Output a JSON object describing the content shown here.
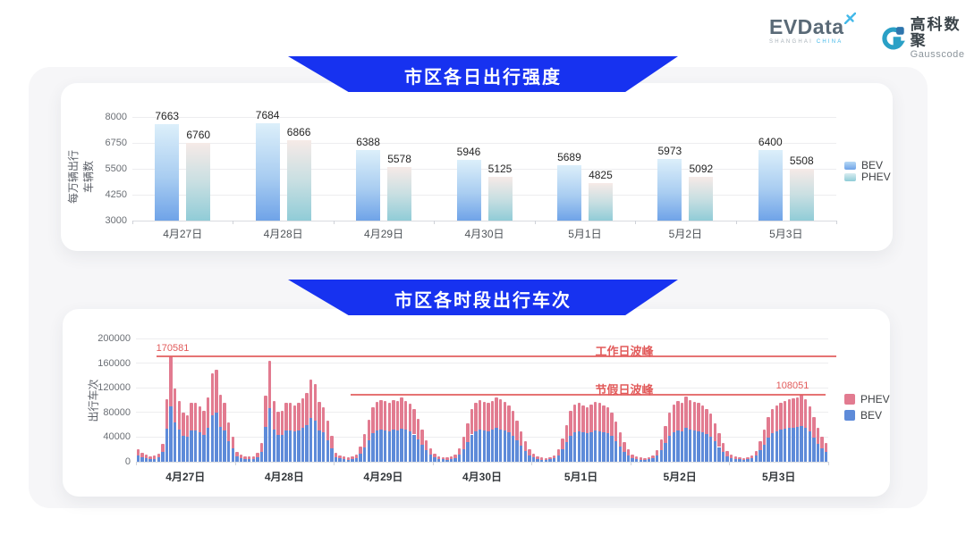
{
  "header": {
    "evdata": {
      "name": "EVData",
      "tagline_gray": "SHANGHAI",
      "tagline_blue": "CHINA"
    },
    "gausscode": {
      "cn": "高科数聚",
      "en": "Gausscode"
    }
  },
  "colors": {
    "banner_blue": "#1732f0",
    "bev_blue": "#5e8bd9",
    "phev_pink": "#e27b90",
    "annotation_red": "#e25b5b",
    "bev_gradient_top": "#dceffa",
    "bev_gradient_bottom": "#6fa3e8",
    "phev_gradient_top": "#f6eae7",
    "phev_gradient_bottom": "#90ccd7",
    "grid_line": "#ededef",
    "axis_line": "#d9dbe0"
  },
  "chart_data": [
    {
      "type": "bar",
      "title": "市区各日出行强度",
      "ylabel": "每万辆出行车辆数",
      "xlabel": "",
      "categories": [
        "4月27日",
        "4月28日",
        "4月29日",
        "4月30日",
        "5月1日",
        "5月2日",
        "5月3日"
      ],
      "series": [
        {
          "name": "BEV",
          "values": [
            7663,
            7684,
            6388,
            5946,
            5689,
            5973,
            6400
          ]
        },
        {
          "name": "PHEV",
          "values": [
            6760,
            6866,
            5578,
            5125,
            4825,
            5092,
            5508
          ]
        }
      ],
      "ylim": [
        3000,
        8000
      ],
      "yticks": [
        3000,
        4250,
        5500,
        6750,
        8000
      ],
      "legend": [
        "BEV",
        "PHEV"
      ],
      "legend_position": "right",
      "grid": true
    },
    {
      "type": "bar-stacked",
      "title": "市区各时段出行车次",
      "ylabel": "出行车次",
      "xlabel": "",
      "ylim": [
        0,
        200000
      ],
      "yticks": [
        0,
        40000,
        80000,
        120000,
        160000,
        200000
      ],
      "legend": [
        "PHEV",
        "BEV"
      ],
      "legend_position": "right",
      "grid": true,
      "annotations": {
        "workday": {
          "label": "工作日波峰",
          "value": 170581,
          "value_label": "170581"
        },
        "holiday": {
          "label": "节假日波峰",
          "value": 108051,
          "value_label": "108051"
        }
      },
      "days": [
        {
          "label": "4月27日",
          "bev": [
            10600,
            7400,
            5800,
            4800,
            5000,
            6900,
            15400,
            53500,
            90400,
            63100,
            52500,
            42400,
            40300,
            50400,
            50900,
            47700,
            44000,
            55100,
            75800,
            79500,
            57200,
            50400,
            33900,
            21200
          ],
          "phev": [
            9400,
            6600,
            5200,
            4200,
            4500,
            6100,
            13600,
            47500,
            80181,
            55900,
            46500,
            37600,
            35700,
            44600,
            45100,
            42300,
            39000,
            48900,
            67200,
            70500,
            50800,
            44600,
            30100,
            18800
          ]
        },
        {
          "label": "4月28日",
          "bev": [
            8500,
            5800,
            4800,
            4200,
            4800,
            7400,
            15900,
            56700,
            86900,
            51900,
            42900,
            44000,
            50400,
            50900,
            48800,
            50900,
            54600,
            59400,
            70500,
            66800,
            51400,
            47200,
            35500,
            22300
          ],
          "phev": [
            7500,
            5200,
            4200,
            3800,
            4200,
            6600,
            14100,
            50300,
            77100,
            46100,
            38100,
            39000,
            44600,
            45100,
            43200,
            45100,
            48400,
            52600,
            62500,
            59200,
            45600,
            41800,
            31500,
            19700
          ]
        },
        {
          "label": "4月29日",
          "bev": [
            7300,
            5200,
            4200,
            3600,
            4200,
            6200,
            13000,
            23400,
            35400,
            45800,
            50400,
            52000,
            51000,
            49900,
            52000,
            51000,
            54100,
            51500,
            48900,
            44200,
            36400,
            27000,
            18200,
            11400
          ],
          "phev": [
            6700,
            4800,
            3800,
            3400,
            3800,
            5800,
            12000,
            21600,
            32600,
            42200,
            46600,
            48000,
            47000,
            46100,
            48000,
            47000,
            49900,
            47500,
            45100,
            40800,
            33600,
            25000,
            16800,
            10600
          ]
        },
        {
          "label": "4月30日",
          "bev": [
            6800,
            4700,
            3900,
            3600,
            4200,
            5700,
            11400,
            20800,
            32200,
            44200,
            49900,
            52000,
            50400,
            49400,
            51500,
            54600,
            52500,
            50400,
            47800,
            42600,
            34800,
            26000,
            17200,
            10400
          ],
          "phev": [
            6200,
            4300,
            3600,
            3400,
            3800,
            5300,
            10600,
            19200,
            29800,
            40800,
            46100,
            48000,
            46600,
            45600,
            47500,
            50400,
            48500,
            46600,
            44200,
            39400,
            32200,
            24000,
            15800,
            9600
          ]
        },
        {
          "label": "5月1日",
          "bev": [
            6800,
            4700,
            3600,
            3400,
            3900,
            5200,
            10400,
            19800,
            31200,
            42600,
            48400,
            49900,
            47800,
            45800,
            48400,
            50400,
            49400,
            47800,
            45800,
            41600,
            33800,
            25000,
            16600,
            10400
          ],
          "phev": [
            6200,
            4300,
            3400,
            3100,
            3600,
            4800,
            9600,
            18200,
            28800,
            39400,
            44600,
            46100,
            44200,
            42200,
            44600,
            46600,
            45600,
            44200,
            42200,
            38400,
            31200,
            23000,
            15400,
            9600
          ]
        },
        {
          "label": "5月2日",
          "bev": [
            6200,
            4400,
            3600,
            3400,
            3900,
            5200,
            9900,
            18700,
            30200,
            41600,
            48400,
            51000,
            49400,
            55100,
            52000,
            50400,
            49400,
            47300,
            44700,
            40600,
            32800,
            23900,
            15600,
            9400
          ],
          "phev": [
            5800,
            4100,
            3400,
            3100,
            3600,
            4800,
            9100,
            17300,
            27800,
            38400,
            44600,
            47000,
            45600,
            50900,
            48000,
            46600,
            45600,
            43700,
            41300,
            37400,
            30200,
            22100,
            14400,
            8600
          ]
        },
        {
          "label": "5月3日",
          "bev": [
            6500,
            4300,
            3800,
            3500,
            4100,
            5400,
            9700,
            18400,
            28100,
            38900,
            45900,
            49700,
            51800,
            53500,
            54500,
            55600,
            56700,
            58300,
            55100,
            48600,
            38900,
            29700,
            21600,
            16200
          ],
          "phev": [
            5500,
            3700,
            3200,
            3000,
            3400,
            4600,
            8300,
            15600,
            23900,
            33100,
            39100,
            42300,
            44200,
            45500,
            46500,
            47400,
            48300,
            49751,
            46900,
            41400,
            33100,
            25300,
            18400,
            13800
          ]
        }
      ]
    }
  ]
}
